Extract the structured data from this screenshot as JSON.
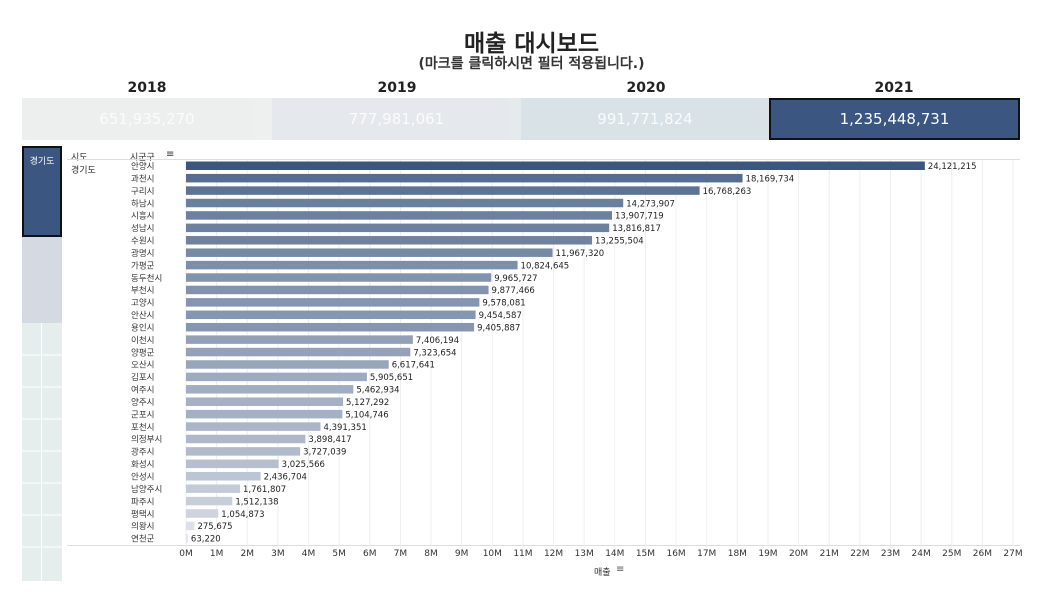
{
  "title": "매출 대시보드",
  "subtitle": "(마크를 클릭하시면 필터 적용됩니다.)",
  "years": [
    {
      "year": "2018",
      "value": "651,935,270",
      "selected": false,
      "bg": "#ebeded"
    },
    {
      "year": "2019",
      "value": "777,981,061",
      "selected": false,
      "bg": "#e1e6ea"
    },
    {
      "year": "2020",
      "value": "991,771,824",
      "selected": false,
      "bg": "#d3dde3"
    },
    {
      "year": "2021",
      "value": "1,235,448,731",
      "selected": true,
      "bg": "#3b5680"
    }
  ],
  "left_filter": {
    "selected_label": "경기도"
  },
  "headers": {
    "sido": "시도",
    "sigungu": "시군구",
    "sido_value": "경기도"
  },
  "colors": {
    "dark": "#3b5680",
    "light": "#e8eaef"
  },
  "chart_data": {
    "type": "bar",
    "orientation": "horizontal",
    "xlabel": "매출",
    "xlim": [
      0,
      27000000
    ],
    "grid": true,
    "x_ticks": [
      "0M",
      "1M",
      "2M",
      "3M",
      "4M",
      "5M",
      "6M",
      "7M",
      "8M",
      "9M",
      "10M",
      "11M",
      "12M",
      "13M",
      "14M",
      "15M",
      "16M",
      "17M",
      "18M",
      "19M",
      "20M",
      "21M",
      "22M",
      "23M",
      "24M",
      "25M",
      "26M",
      "27M"
    ],
    "categories": [
      "안양시",
      "과천시",
      "구리시",
      "하남시",
      "시흥시",
      "성남시",
      "수원시",
      "광명시",
      "가평군",
      "동두천시",
      "부천시",
      "고양시",
      "안산시",
      "용인시",
      "이천시",
      "양평군",
      "오산시",
      "김포시",
      "여주시",
      "양주시",
      "군포시",
      "포천시",
      "의정부시",
      "광주시",
      "화성시",
      "안성시",
      "남양주시",
      "파주시",
      "평택시",
      "의왕시",
      "연천군"
    ],
    "values": [
      24121215,
      18169734,
      16768263,
      14273907,
      13907719,
      13816817,
      13255504,
      11967320,
      10824645,
      9965727,
      9877466,
      9578081,
      9454587,
      9405887,
      7406194,
      7323654,
      6617641,
      5905651,
      5462934,
      5127292,
      5104746,
      4391351,
      3898417,
      3727039,
      3025566,
      2436704,
      1761807,
      1512138,
      1054873,
      275675,
      63220
    ],
    "value_labels": [
      "24,121,215",
      "18,169,734",
      "16,768,263",
      "14,273,907",
      "13,907,719",
      "13,816,817",
      "13,255,504",
      "11,967,320",
      "10,824,645",
      "9,965,727",
      "9,877,466",
      "9,578,081",
      "9,454,587",
      "9,405,887",
      "7,406,194",
      "7,323,654",
      "6,617,641",
      "5,905,651",
      "5,462,934",
      "5,127,292",
      "5,104,746",
      "4,391,351",
      "3,898,417",
      "3,727,039",
      "3,025,566",
      "2,436,704",
      "1,761,807",
      "1,512,138",
      "1,054,873",
      "275,675",
      "63,220"
    ]
  }
}
